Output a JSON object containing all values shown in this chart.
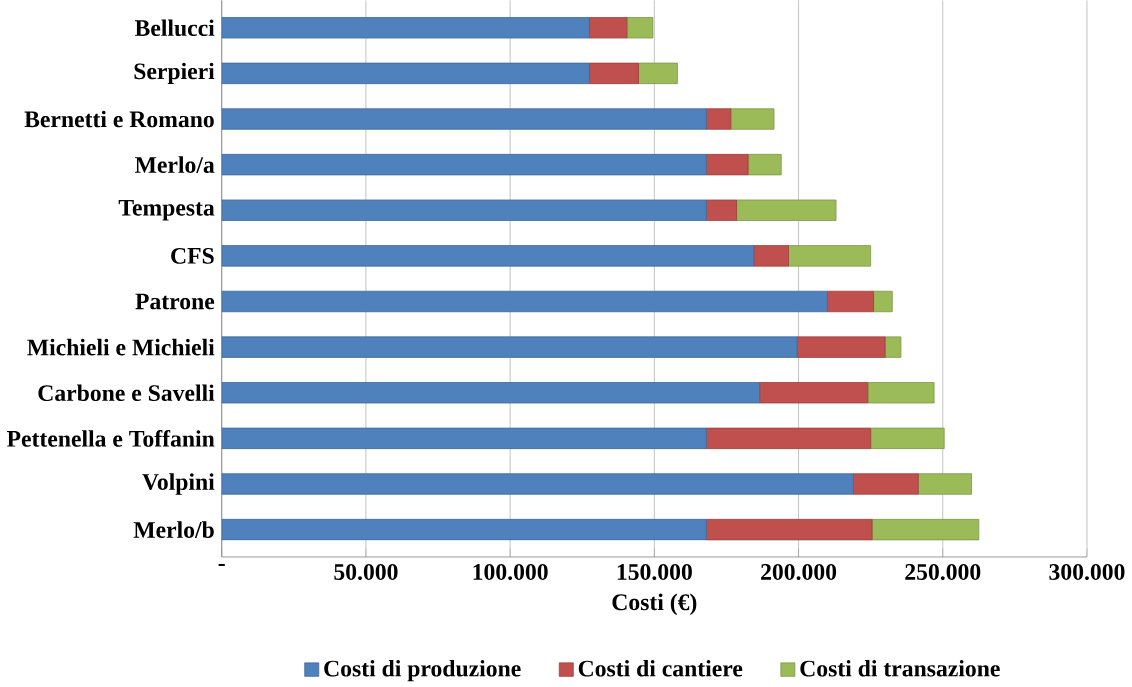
{
  "chart_data": {
    "type": "bar",
    "orientation": "horizontal",
    "stacked": true,
    "categories": [
      "Bellucci",
      "Serpieri",
      "Bernetti e Romano",
      "Merlo/a",
      "Tempesta",
      "CFS",
      "Patrone",
      "Michieli e Michieli",
      "Carbone e Savelli",
      "Pettenella e Toffanin",
      "Volpini",
      "Merlo/b"
    ],
    "series": [
      {
        "name": "Costi di produzione",
        "color": "#4f81bd",
        "values": [
          127500,
          127500,
          168000,
          168000,
          168000,
          184500,
          210000,
          199500,
          186500,
          168000,
          219000,
          168000
        ]
      },
      {
        "name": "Costi di cantiere",
        "color": "#c0504d",
        "values": [
          13000,
          17000,
          8500,
          14500,
          10500,
          12000,
          16000,
          30500,
          37500,
          57000,
          22500,
          57500
        ]
      },
      {
        "name": "Costi di transazione",
        "color": "#9bbb59",
        "values": [
          9000,
          13500,
          15000,
          11500,
          34500,
          28500,
          6500,
          5500,
          23000,
          25500,
          18500,
          37000
        ]
      }
    ],
    "xlabel": "Costi (€)",
    "xlim": [
      0,
      300000
    ],
    "xticks": [
      {
        "value": 0,
        "label": "-"
      },
      {
        "value": 50000,
        "label": "50.000"
      },
      {
        "value": 100000,
        "label": "100.000"
      },
      {
        "value": 150000,
        "label": "150.000"
      },
      {
        "value": 200000,
        "label": "200.000"
      },
      {
        "value": 250000,
        "label": "250.000"
      },
      {
        "value": 300000,
        "label": "300.000"
      }
    ],
    "grid": "x",
    "legend": "bottom"
  }
}
